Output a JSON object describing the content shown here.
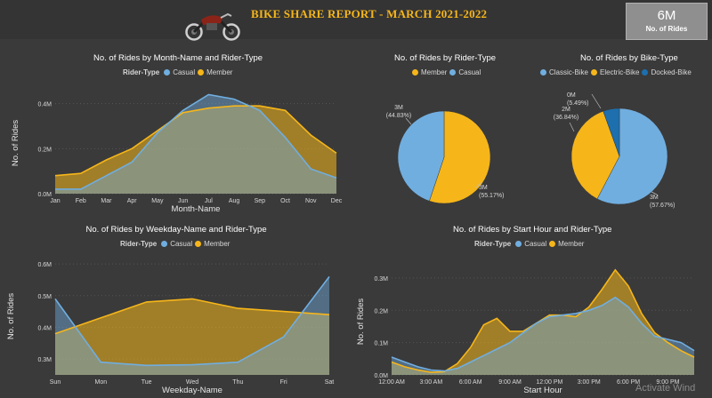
{
  "header": {
    "title": "BIKE SHARE REPORT  -  MARCH 2021-2022",
    "logo_icon": "motorcycle-icon"
  },
  "kpi": {
    "value": "6M",
    "label": "No. of Rides"
  },
  "colors": {
    "casual": "#70aee0",
    "member": "#f6b61a",
    "docked": "#1d6fae",
    "background": "#3a3a3a"
  },
  "watermark": "Activate Wind",
  "chart_data": [
    {
      "type": "area",
      "title": "No. of Rides by Month-Name and Rider-Type",
      "legend_title": "Rider-Type",
      "xlabel": "Month-Name",
      "ylabel": "No. of Rides",
      "categories": [
        "Jan",
        "Feb",
        "Mar",
        "Apr",
        "May",
        "Jun",
        "Jul",
        "Aug",
        "Sep",
        "Oct",
        "Nov",
        "Dec"
      ],
      "yticks": [
        {
          "v": 0,
          "label": "0.0M"
        },
        {
          "v": 0.2,
          "label": "0.2M"
        },
        {
          "v": 0.4,
          "label": "0.4M"
        }
      ],
      "ylim": [
        0,
        0.45
      ],
      "series": [
        {
          "name": "Casual",
          "color": "#70aee0",
          "values": [
            0.02,
            0.02,
            0.08,
            0.14,
            0.27,
            0.37,
            0.44,
            0.42,
            0.37,
            0.25,
            0.11,
            0.07
          ]
        },
        {
          "name": "Member",
          "color": "#f6b61a",
          "values": [
            0.08,
            0.09,
            0.15,
            0.2,
            0.28,
            0.36,
            0.38,
            0.39,
            0.39,
            0.37,
            0.26,
            0.18
          ]
        }
      ]
    },
    {
      "type": "pie",
      "title": "No. of Rides by Rider-Type",
      "legend_title": "",
      "slices": [
        {
          "name": "Member",
          "value": 55.17,
          "color": "#f6b61a",
          "label": "3M",
          "pct": "(55.17%)"
        },
        {
          "name": "Casual",
          "value": 44.83,
          "color": "#70aee0",
          "label": "3M",
          "pct": "(44.83%)"
        }
      ]
    },
    {
      "type": "pie",
      "title": "No. of Rides by Bike-Type",
      "legend_title": "",
      "slices": [
        {
          "name": "Classic-Bike",
          "value": 57.67,
          "color": "#70aee0",
          "label": "3M",
          "pct": "(57.67%)"
        },
        {
          "name": "Electric-Bike",
          "value": 36.84,
          "color": "#f6b61a",
          "label": "2M",
          "pct": "(36.84%)"
        },
        {
          "name": "Docked-Bike",
          "value": 5.49,
          "color": "#1d6fae",
          "label": "0M",
          "pct": "(5.49%)"
        }
      ]
    },
    {
      "type": "area",
      "title": "No. of Rides by Weekday-Name and Rider-Type",
      "legend_title": "Rider-Type",
      "xlabel": "Weekday-Name",
      "ylabel": "No. of Rides",
      "categories": [
        "Sun",
        "Mon",
        "Tue",
        "Wed",
        "Thu",
        "Fri",
        "Sat"
      ],
      "yticks": [
        {
          "v": 0.3,
          "label": "0.3M"
        },
        {
          "v": 0.4,
          "label": "0.4M"
        },
        {
          "v": 0.5,
          "label": "0.5M"
        },
        {
          "v": 0.6,
          "label": "0.6M"
        }
      ],
      "ylim": [
        0.25,
        0.62
      ],
      "series": [
        {
          "name": "Casual",
          "color": "#70aee0",
          "values": [
            0.49,
            0.29,
            0.28,
            0.282,
            0.29,
            0.37,
            0.56
          ]
        },
        {
          "name": "Member",
          "color": "#f6b61a",
          "values": [
            0.38,
            0.43,
            0.48,
            0.49,
            0.46,
            0.45,
            0.44
          ]
        }
      ]
    },
    {
      "type": "area",
      "title": "No. of Rides by Start Hour and Rider-Type",
      "legend_title": "Rider-Type",
      "xlabel": "Start Hour",
      "ylabel": "No. of Rides",
      "x": [
        0,
        1,
        2,
        3,
        4,
        5,
        6,
        7,
        8,
        9,
        10,
        11,
        12,
        13,
        14,
        15,
        16,
        17,
        18,
        19,
        20,
        21,
        22,
        23
      ],
      "xticks": [
        {
          "v": 0,
          "label": "12:00 AM"
        },
        {
          "v": 3,
          "label": "3:00 AM"
        },
        {
          "v": 6,
          "label": "6:00 AM"
        },
        {
          "v": 9,
          "label": "9:00 AM"
        },
        {
          "v": 12,
          "label": "12:00 PM"
        },
        {
          "v": 15,
          "label": "3:00 PM"
        },
        {
          "v": 18,
          "label": "6:00 PM"
        },
        {
          "v": 21,
          "label": "9:00 PM"
        }
      ],
      "yticks": [
        {
          "v": 0,
          "label": "0.0M"
        },
        {
          "v": 0.1,
          "label": "0.1M"
        },
        {
          "v": 0.2,
          "label": "0.2M"
        },
        {
          "v": 0.3,
          "label": "0.3M"
        }
      ],
      "ylim": [
        0,
        0.33
      ],
      "series": [
        {
          "name": "Casual",
          "color": "#70aee0",
          "values": [
            0.055,
            0.04,
            0.025,
            0.015,
            0.012,
            0.02,
            0.04,
            0.06,
            0.08,
            0.1,
            0.13,
            0.16,
            0.18,
            0.185,
            0.19,
            0.2,
            0.215,
            0.24,
            0.21,
            0.16,
            0.12,
            0.11,
            0.1,
            0.075
          ]
        },
        {
          "name": "Member",
          "color": "#f6b61a",
          "values": [
            0.04,
            0.025,
            0.015,
            0.008,
            0.01,
            0.035,
            0.085,
            0.155,
            0.175,
            0.135,
            0.135,
            0.16,
            0.185,
            0.185,
            0.18,
            0.21,
            0.265,
            0.325,
            0.275,
            0.19,
            0.13,
            0.1,
            0.075,
            0.055
          ]
        }
      ]
    }
  ]
}
